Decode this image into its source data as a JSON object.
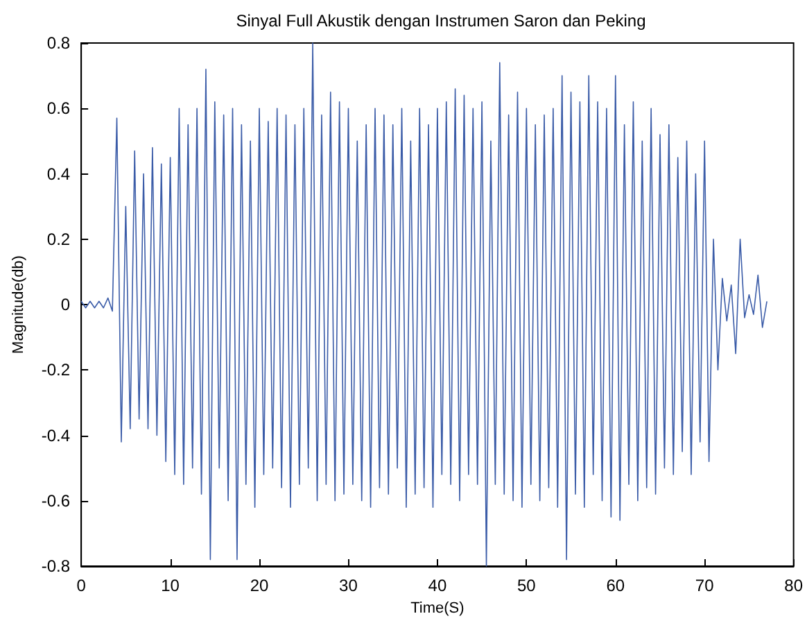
{
  "chart_data": {
    "type": "line",
    "title": "Sinyal Full Akustik dengan Instrumen Saron dan Peking",
    "xlabel": "Time(S)",
    "ylabel": "Magnitude(db)",
    "xlim": [
      0,
      80
    ],
    "xticks": [
      0,
      10,
      20,
      30,
      40,
      50,
      60,
      70,
      80
    ],
    "ylim": [
      -0.8,
      0.8
    ],
    "yticks": [
      -0.8,
      -0.6,
      -0.4,
      -0.2,
      0,
      0.2,
      0.4,
      0.6,
      0.8
    ],
    "grid": false,
    "marker": "none",
    "line_style": "solid",
    "series": [
      {
        "color": "#3b5ca8",
        "x": [
          0,
          0.5,
          1,
          1.5,
          2,
          2.5,
          3,
          3.5,
          4,
          4.5,
          5,
          5.5,
          6,
          6.5,
          7,
          7.5,
          8,
          8.5,
          9,
          9.5,
          10,
          10.5,
          11,
          11.5,
          12,
          12.5,
          13,
          13.5,
          14,
          14.5,
          15,
          15.5,
          16,
          16.5,
          17,
          17.5,
          18,
          18.5,
          19,
          19.5,
          20,
          20.5,
          21,
          21.5,
          22,
          22.5,
          23,
          23.5,
          24,
          24.5,
          25,
          25.5,
          26,
          26.5,
          27,
          27.5,
          28,
          28.5,
          29,
          29.5,
          30,
          30.5,
          31,
          31.5,
          32,
          32.5,
          33,
          33.5,
          34,
          34.5,
          35,
          35.5,
          36,
          36.5,
          37,
          37.5,
          38,
          38.5,
          39,
          39.5,
          40,
          40.5,
          41,
          41.5,
          42,
          42.5,
          43,
          43.5,
          44,
          44.5,
          45,
          45.5,
          46,
          46.5,
          47,
          47.5,
          48,
          48.5,
          49,
          49.5,
          50,
          50.5,
          51,
          51.5,
          52,
          52.5,
          53,
          53.5,
          54,
          54.5,
          55,
          55.5,
          56,
          56.5,
          57,
          57.5,
          58,
          58.5,
          59,
          59.5,
          60,
          60.5,
          61,
          61.5,
          62,
          62.5,
          63,
          63.5,
          64,
          64.5,
          65,
          65.5,
          66,
          66.5,
          67,
          67.5,
          68,
          68.5,
          69,
          69.5,
          70,
          70.5,
          71,
          71.5,
          72,
          72.5,
          73,
          73.5,
          74,
          74.5,
          75,
          75.5,
          76,
          76.5,
          77
        ],
        "values": [
          0.01,
          -0.01,
          0.01,
          -0.01,
          0.01,
          -0.01,
          0.02,
          -0.02,
          0.57,
          -0.42,
          0.3,
          -0.38,
          0.47,
          -0.35,
          0.4,
          -0.38,
          0.48,
          -0.4,
          0.43,
          -0.48,
          0.45,
          -0.52,
          0.6,
          -0.55,
          0.55,
          -0.5,
          0.6,
          -0.58,
          0.72,
          -0.78,
          0.62,
          -0.5,
          0.58,
          -0.6,
          0.6,
          -0.78,
          0.55,
          -0.55,
          0.5,
          -0.62,
          0.6,
          -0.52,
          0.56,
          -0.5,
          0.6,
          -0.56,
          0.58,
          -0.62,
          0.55,
          -0.55,
          0.6,
          -0.5,
          0.8,
          -0.6,
          0.58,
          -0.55,
          0.65,
          -0.6,
          0.62,
          -0.58,
          0.6,
          -0.55,
          0.5,
          -0.6,
          0.55,
          -0.62,
          0.6,
          -0.56,
          0.58,
          -0.58,
          0.55,
          -0.5,
          0.6,
          -0.62,
          0.5,
          -0.58,
          0.6,
          -0.56,
          0.55,
          -0.62,
          0.6,
          -0.52,
          0.62,
          -0.55,
          0.66,
          -0.6,
          0.64,
          -0.52,
          0.6,
          -0.55,
          0.62,
          -0.8,
          0.5,
          -0.55,
          0.74,
          -0.58,
          0.58,
          -0.6,
          0.65,
          -0.62,
          0.6,
          -0.55,
          0.55,
          -0.6,
          0.58,
          -0.56,
          0.6,
          -0.62,
          0.7,
          -0.78,
          0.65,
          -0.58,
          0.62,
          -0.62,
          0.7,
          -0.52,
          0.62,
          -0.6,
          0.6,
          -0.65,
          0.7,
          -0.66,
          0.55,
          -0.55,
          0.62,
          -0.6,
          0.5,
          -0.56,
          0.6,
          -0.58,
          0.52,
          -0.5,
          0.55,
          -0.52,
          0.45,
          -0.45,
          0.5,
          -0.52,
          0.4,
          -0.42,
          0.5,
          -0.48,
          0.2,
          -0.2,
          0.08,
          -0.05,
          0.06,
          -0.15,
          0.2,
          -0.04,
          0.03,
          -0.03,
          0.09,
          -0.07,
          0.01
        ]
      }
    ]
  }
}
